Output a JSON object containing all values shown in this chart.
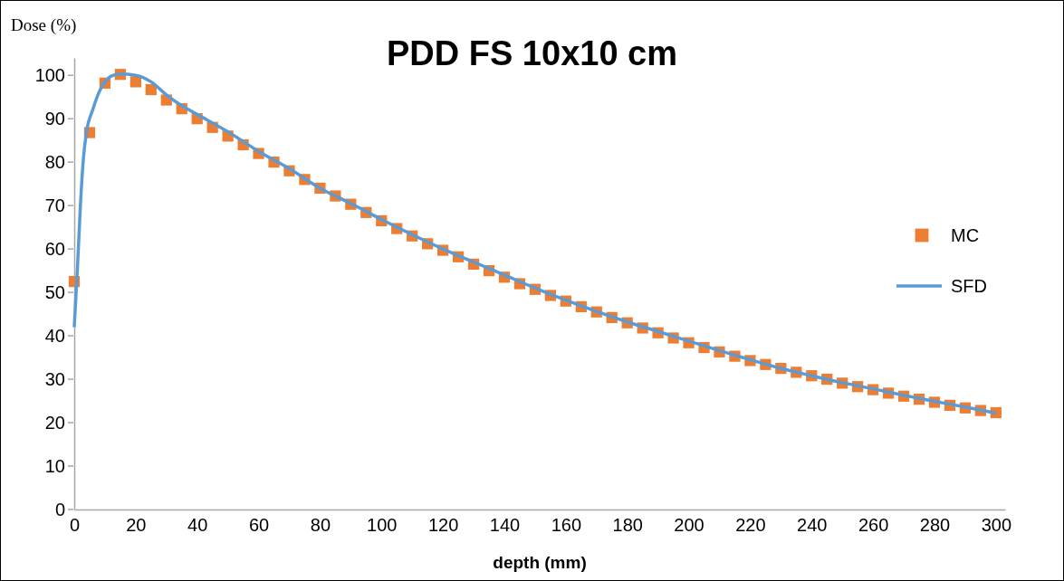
{
  "chart_data": {
    "type": "scatter",
    "title": "PDD FS 10x10 cm",
    "xlabel": "depth (mm)",
    "ylabel": "Dose (%)",
    "xlim": [
      0,
      303
    ],
    "xticks": [
      0,
      20,
      40,
      60,
      80,
      100,
      120,
      140,
      160,
      180,
      200,
      220,
      240,
      260,
      280,
      300
    ],
    "ylim": [
      0,
      104
    ],
    "yticks": [
      0,
      10,
      20,
      30,
      40,
      50,
      60,
      70,
      80,
      90,
      100
    ],
    "grid": false,
    "legend": "right",
    "series": [
      {
        "name": "MC",
        "type": "scatter",
        "marker": "square",
        "color": "#ed7d31",
        "x": [
          0,
          5,
          10,
          15,
          20,
          25,
          30,
          35,
          40,
          45,
          50,
          55,
          60,
          65,
          70,
          75,
          80,
          85,
          90,
          95,
          100,
          105,
          110,
          115,
          120,
          125,
          130,
          135,
          140,
          145,
          150,
          155,
          160,
          165,
          170,
          175,
          180,
          185,
          190,
          195,
          200,
          205,
          210,
          215,
          220,
          225,
          230,
          235,
          240,
          245,
          250,
          255,
          260,
          265,
          270,
          275,
          280,
          285,
          290,
          295,
          300
        ],
        "values": [
          52.5,
          86.8,
          98.2,
          100.2,
          98.5,
          96.7,
          94.3,
          92.3,
          90,
          88,
          86,
          84,
          82,
          80,
          78,
          76,
          74,
          72.2,
          70.3,
          68.4,
          66.5,
          64.7,
          63,
          61.2,
          59.7,
          58.2,
          56.5,
          55,
          53.5,
          52,
          50.7,
          49.3,
          48,
          46.7,
          45.5,
          44.2,
          43,
          41.8,
          40.7,
          39.5,
          38.4,
          37.3,
          36.3,
          35.3,
          34.3,
          33.4,
          32.5,
          31.6,
          30.8,
          30,
          29.1,
          28.3,
          27.6,
          26.8,
          26.1,
          25.4,
          24.7,
          24,
          23.4,
          22.8,
          22.3
        ]
      },
      {
        "name": "SFD",
        "type": "line",
        "marker": "none",
        "line_style": "solid",
        "color": "#5b9bd5",
        "x": [
          0,
          1,
          2,
          3,
          4,
          6,
          8,
          10,
          12,
          15,
          20,
          25,
          30,
          35,
          40,
          50,
          60,
          70,
          80,
          90,
          100,
          110,
          120,
          130,
          140,
          150,
          160,
          170,
          180,
          190,
          200,
          210,
          220,
          230,
          240,
          250,
          260,
          270,
          280,
          290,
          300
        ],
        "values": [
          42,
          55,
          70,
          81,
          87,
          92,
          96,
          98.5,
          99.8,
          100.3,
          100,
          98.5,
          95.5,
          93,
          91,
          87,
          82.5,
          78.5,
          74,
          70.5,
          66.8,
          63.3,
          60,
          57,
          54,
          51,
          48.2,
          45.6,
          43.2,
          41,
          38.8,
          36.6,
          34.5,
          32.5,
          30.8,
          29.2,
          27.8,
          26.3,
          24.9,
          23.6,
          22.2
        ]
      }
    ]
  }
}
